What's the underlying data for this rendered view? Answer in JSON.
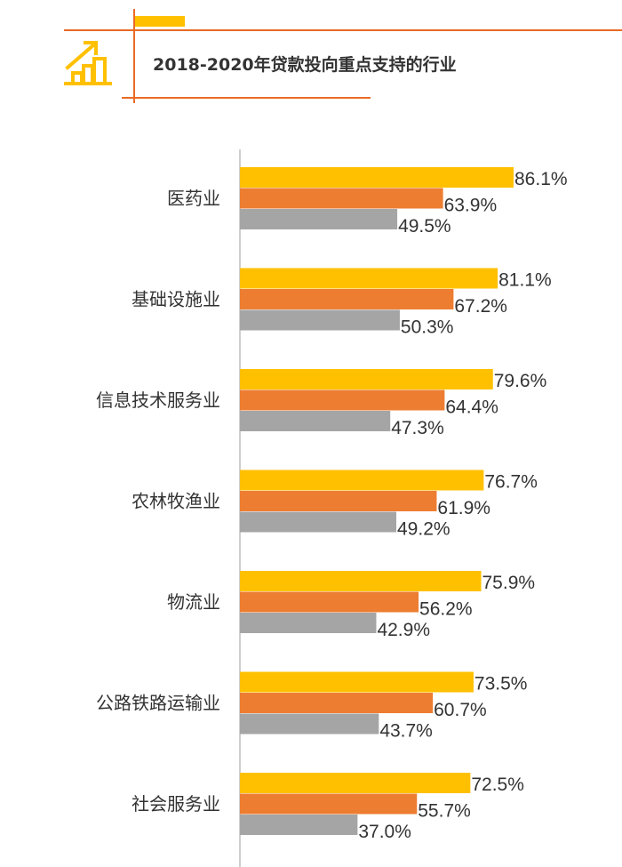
{
  "title": "2018-2020年贷款投向重点支持的行业",
  "header": {
    "icon": "growth-chart-icon",
    "accent_color": "#FFC000",
    "line_color": "#E96B25"
  },
  "chart_data": {
    "type": "bar",
    "orientation": "horizontal",
    "title": "2018-2020年贷款投向重点支持的行业",
    "categories": [
      "医药业",
      "基础设施业",
      "信息技术服务业",
      "农林牧渔业",
      "物流业",
      "公路铁路运输业",
      "社会服务业"
    ],
    "series": [
      {
        "values": [
          86.1,
          81.1,
          79.6,
          76.7,
          75.9,
          73.5,
          72.5
        ],
        "color": "#FFC000"
      },
      {
        "values": [
          63.9,
          67.2,
          64.4,
          61.9,
          56.2,
          60.7,
          55.7
        ],
        "color": "#ED7D31"
      },
      {
        "values": [
          49.5,
          50.3,
          47.3,
          49.2,
          42.9,
          43.7,
          37.0
        ],
        "color": "#A5A5A5"
      }
    ],
    "value_labels": [
      [
        "86.1%",
        "81.1%",
        "79.6%",
        "76.7%",
        "75.9%",
        "73.5%",
        "72.5%"
      ],
      [
        "63.9%",
        "67.2%",
        "64.4%",
        "61.9%",
        "56.2%",
        "60.7%",
        "55.7%"
      ],
      [
        "49.5%",
        "50.3%",
        "47.3%",
        "49.2%",
        "42.9%",
        "43.7%",
        "37.0%"
      ]
    ],
    "xlim": [
      0,
      100
    ],
    "unit": "%",
    "grid": false,
    "legend": "none"
  }
}
